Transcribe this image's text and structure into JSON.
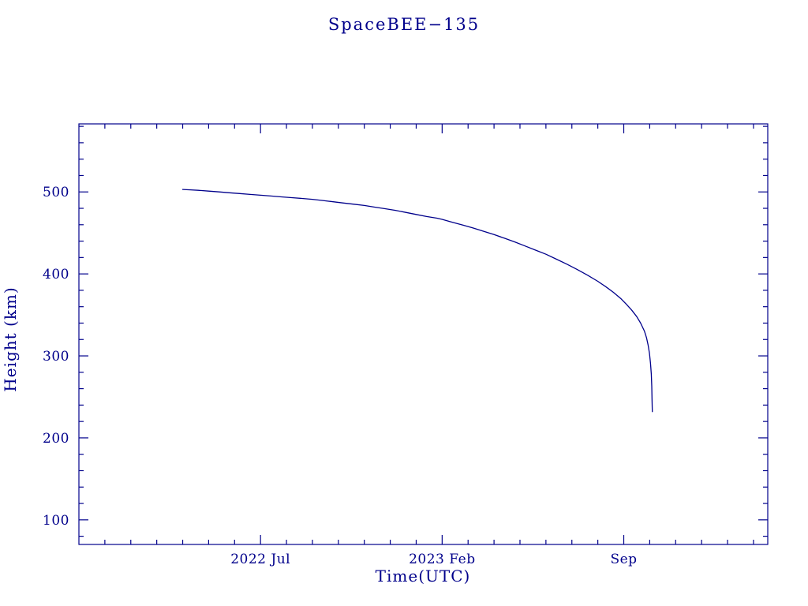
{
  "page": {
    "background": "#ffffff"
  },
  "chart_data": {
    "type": "line",
    "title": "SpaceBEE−135",
    "xlabel": "Time(UTC)",
    "ylabel": "Height (km)",
    "colors": {
      "text": "#00008b",
      "axis": "#00008b",
      "line": "#00008b"
    },
    "x_axis": {
      "unit": "months from plot left edge (left edge = 2021 Dec)",
      "range": [
        0,
        26.55
      ],
      "major_ticks": [
        {
          "x": 7,
          "label": "2022 Jul"
        },
        {
          "x": 14,
          "label": "2023 Feb"
        },
        {
          "x": 21,
          "label": "Sep"
        }
      ],
      "minor_tick_step": 1
    },
    "y_axis": {
      "unit": "km",
      "range": [
        70,
        583
      ],
      "major_ticks": [
        {
          "y": 100,
          "label": "100"
        },
        {
          "y": 200,
          "label": "200"
        },
        {
          "y": 300,
          "label": "300"
        },
        {
          "y": 400,
          "label": "400"
        },
        {
          "y": 500,
          "label": "500"
        }
      ],
      "minor_tick_step": 20
    },
    "series": [
      {
        "name": "height",
        "points": [
          [
            4.0,
            503
          ],
          [
            4.3,
            502.5
          ],
          [
            4.6,
            502
          ],
          [
            5.0,
            501
          ],
          [
            5.4,
            500
          ],
          [
            5.8,
            499
          ],
          [
            6.2,
            498
          ],
          [
            6.6,
            497
          ],
          [
            7.0,
            496
          ],
          [
            7.4,
            495
          ],
          [
            7.8,
            494
          ],
          [
            8.2,
            493
          ],
          [
            8.6,
            492
          ],
          [
            9.0,
            491
          ],
          [
            9.4,
            489.5
          ],
          [
            9.8,
            488
          ],
          [
            10.2,
            486.5
          ],
          [
            10.6,
            485
          ],
          [
            11.0,
            483.5
          ],
          [
            11.4,
            481.5
          ],
          [
            11.8,
            479.5
          ],
          [
            12.2,
            477.5
          ],
          [
            12.6,
            475
          ],
          [
            13.0,
            472.5
          ],
          [
            13.4,
            470
          ],
          [
            13.8,
            468
          ],
          [
            14.0,
            466.5
          ],
          [
            14.4,
            463
          ],
          [
            14.8,
            459.5
          ],
          [
            15.2,
            456
          ],
          [
            15.6,
            452
          ],
          [
            16.0,
            448
          ],
          [
            16.4,
            443.5
          ],
          [
            16.8,
            439
          ],
          [
            17.2,
            434
          ],
          [
            17.6,
            429
          ],
          [
            18.0,
            424
          ],
          [
            18.4,
            418
          ],
          [
            18.8,
            412
          ],
          [
            19.2,
            405.5
          ],
          [
            19.6,
            398.5
          ],
          [
            20.0,
            391
          ],
          [
            20.3,
            384.5
          ],
          [
            20.6,
            377.5
          ],
          [
            20.9,
            369.5
          ],
          [
            21.1,
            363
          ],
          [
            21.3,
            356
          ],
          [
            21.5,
            348
          ],
          [
            21.65,
            340
          ],
          [
            21.8,
            330
          ],
          [
            21.88,
            322
          ],
          [
            21.94,
            313
          ],
          [
            21.99,
            303
          ],
          [
            22.03,
            291
          ],
          [
            22.06,
            278
          ],
          [
            22.08,
            263
          ],
          [
            22.09,
            248
          ],
          [
            22.1,
            232
          ]
        ]
      }
    ]
  }
}
